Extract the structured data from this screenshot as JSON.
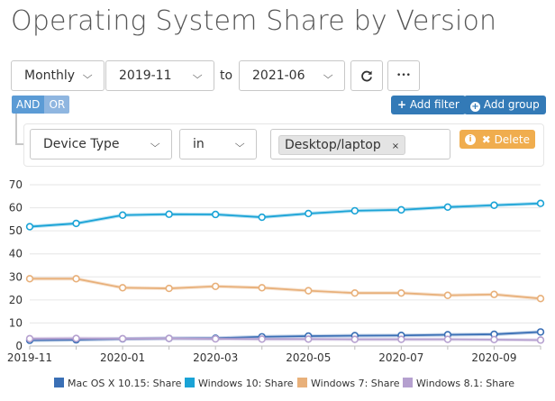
{
  "page": {
    "title": "Operating System Share by Version"
  },
  "controls": {
    "interval": "Monthly",
    "from": "2019-11",
    "to_label": "to",
    "to": "2021-06",
    "refresh_icon": "refresh-icon",
    "more_icon": "ellipsis-icon",
    "more_label": "•••"
  },
  "filters": {
    "and_label": "AND",
    "or_label": "OR",
    "add_filter_label": "Add filter",
    "add_group_label": "Add group",
    "rule": {
      "field": "Device Type",
      "operator": "in",
      "values": [
        "Desktop/laptop"
      ],
      "remove_tag_label": "×",
      "delete_label": "Delete",
      "info_icon_label": "i"
    }
  },
  "chart_data": {
    "type": "line",
    "x": [
      "2019-11",
      "2019-12",
      "2020-01",
      "2020-02",
      "2020-03",
      "2020-04",
      "2020-05",
      "2020-06",
      "2020-07",
      "2020-08",
      "2020-09",
      "2020-10"
    ],
    "x_tick_labels": [
      "2019-11",
      "2020-01",
      "2020-03",
      "2020-05",
      "2020-07",
      "2020-09"
    ],
    "ylim": [
      0,
      70
    ],
    "y_ticks": [
      0,
      10,
      20,
      30,
      40,
      50,
      60,
      70
    ],
    "grid": true,
    "legend_position": "bottom",
    "series": [
      {
        "name": "Mac OS X 10.15: Share",
        "color": "#3a6fb5",
        "values": [
          2.5,
          2.7,
          3.1,
          3.3,
          3.4,
          4.0,
          4.3,
          4.5,
          4.6,
          4.9,
          5.1,
          6.1
        ]
      },
      {
        "name": "Windows 10: Share",
        "color": "#1aa3d6",
        "values": [
          51.8,
          53.2,
          56.8,
          57.2,
          57.1,
          55.9,
          57.5,
          58.7,
          59.1,
          60.3,
          61.1,
          61.9
        ]
      },
      {
        "name": "Windows 7: Share",
        "color": "#e8b07a",
        "values": [
          29.2,
          29.2,
          25.3,
          25.0,
          25.9,
          25.3,
          24.0,
          23.0,
          23.0,
          22.0,
          22.4,
          20.6
        ]
      },
      {
        "name": "Windows 8.1: Share",
        "color": "#b5a0cf",
        "values": [
          3.2,
          3.3,
          3.2,
          3.3,
          3.1,
          3.0,
          3.0,
          2.9,
          2.9,
          2.9,
          2.8,
          2.6
        ]
      }
    ]
  }
}
